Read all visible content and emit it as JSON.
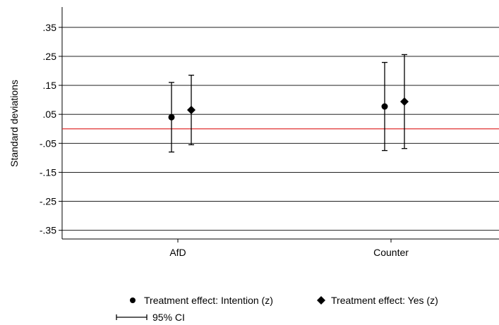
{
  "chart_data": {
    "type": "scatter",
    "ylabel": "Standard deviations",
    "ylim": [
      -0.38,
      0.42
    ],
    "yticks": [
      0.35,
      0.25,
      0.15,
      0.05,
      -0.05,
      -0.15,
      -0.25,
      -0.35
    ],
    "ytick_labels": [
      ".35",
      ".25",
      ".15",
      ".05",
      "-.05",
      "-.15",
      "-.25",
      "-.35"
    ],
    "grid": true,
    "reference_line": {
      "y": 0,
      "color": "#e03030"
    },
    "categories": [
      "AfD",
      "Counter"
    ],
    "series": [
      {
        "name": "Treatment effect: Intention (z)",
        "marker": "circle",
        "points": [
          {
            "category": "AfD",
            "y": 0.04,
            "ci": [
              -0.08,
              0.16
            ]
          },
          {
            "category": "Counter",
            "y": 0.077,
            "ci": [
              -0.075,
              0.229
            ]
          }
        ]
      },
      {
        "name": "Treatment effect: Yes (z)",
        "marker": "diamond",
        "points": [
          {
            "category": "AfD",
            "y": 0.065,
            "ci": [
              -0.055,
              0.185
            ]
          },
          {
            "category": "Counter",
            "y": 0.094,
            "ci": [
              -0.068,
              0.256
            ]
          }
        ]
      }
    ],
    "legend": {
      "placement": "bottom",
      "ci_label": "95% CI"
    }
  }
}
